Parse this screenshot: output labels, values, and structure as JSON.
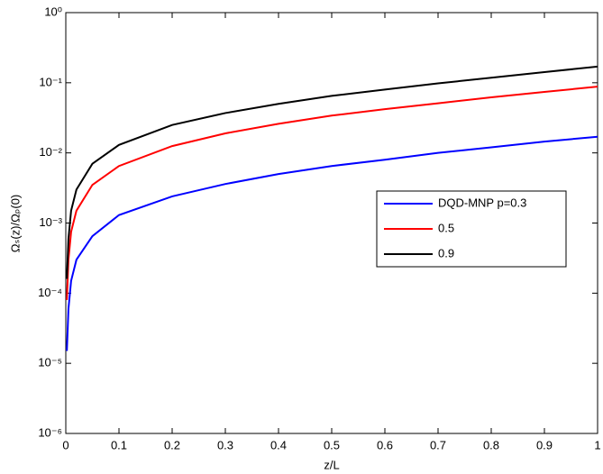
{
  "chart_data": {
    "type": "line",
    "x": [
      0.002,
      0.005,
      0.01,
      0.02,
      0.05,
      0.1,
      0.2,
      0.3,
      0.4,
      0.5,
      0.6,
      0.7,
      0.8,
      0.9,
      1.0
    ],
    "series": [
      {
        "name": "DQD-MNP p=0.3",
        "color": "#0000ff",
        "values": [
          1.5e-05,
          6e-05,
          0.00015,
          0.0003,
          0.00065,
          0.0013,
          0.0024,
          0.0036,
          0.005,
          0.0065,
          0.008,
          0.01,
          0.012,
          0.0145,
          0.017
        ]
      },
      {
        "name": "0.5",
        "color": "#ff0000",
        "values": [
          8e-05,
          0.0003,
          0.00075,
          0.0015,
          0.0035,
          0.0065,
          0.0125,
          0.019,
          0.026,
          0.034,
          0.042,
          0.051,
          0.062,
          0.074,
          0.088
        ]
      },
      {
        "name": "0.9",
        "color": "#000000",
        "values": [
          0.00016,
          0.0006,
          0.0015,
          0.003,
          0.007,
          0.013,
          0.025,
          0.037,
          0.05,
          0.065,
          0.08,
          0.098,
          0.118,
          0.142,
          0.17
        ]
      }
    ],
    "xlabel": "z/L",
    "ylabel": "Ωₛ(z)/Ωₚ(0)",
    "xlim": [
      0,
      1
    ],
    "xticks": [
      0,
      0.1,
      0.2,
      0.3,
      0.4,
      0.5,
      0.6,
      0.7,
      0.8,
      0.9,
      1
    ],
    "ylim": [
      1e-06,
      1
    ],
    "ylog": true,
    "yticks": [
      {
        "value": 1e-06,
        "label": "10⁻⁶"
      },
      {
        "value": 1e-05,
        "label": "10⁻⁵"
      },
      {
        "value": 0.0001,
        "label": "10⁻⁴"
      },
      {
        "value": 0.001,
        "label": "10⁻³"
      },
      {
        "value": 0.01,
        "label": "10⁻²"
      },
      {
        "value": 0.1,
        "label": "10⁻¹"
      },
      {
        "value": 1,
        "label": "10⁰"
      }
    ],
    "legend": "right"
  }
}
